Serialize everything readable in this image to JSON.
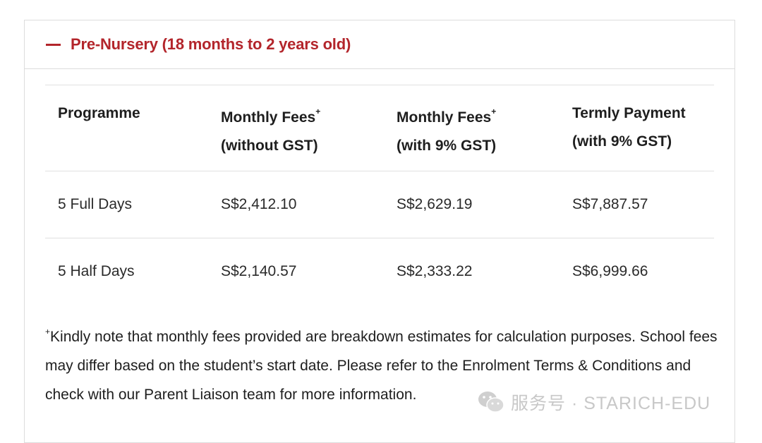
{
  "accordion": {
    "title": "Pre-Nursery (18 months to 2 years old)",
    "icon": "minus-icon",
    "accent_color": "#b3252b"
  },
  "table": {
    "headers": [
      {
        "line1": "Programme",
        "sup": "",
        "line2": ""
      },
      {
        "line1": "Monthly Fees",
        "sup": "+",
        "line2": "(without GST)"
      },
      {
        "line1": "Monthly Fees",
        "sup": "+",
        "line2": "(with 9% GST)"
      },
      {
        "line1": "Termly Payment",
        "sup": "",
        "line2": "(with 9% GST)"
      }
    ],
    "rows": [
      [
        "5 Full Days",
        "S$2,412.10",
        "S$2,629.19",
        "S$7,887.57"
      ],
      [
        "5 Half Days",
        "S$2,140.57",
        "S$2,333.22",
        "S$6,999.66"
      ]
    ]
  },
  "footnote": {
    "marker": "+",
    "text": "Kindly note that monthly fees provided are breakdown estimates for calculation purposes. School fees may differ based on the student’s start date. Please refer to the Enrolment Terms & Conditions and check with our Parent Liaison team for more information."
  },
  "watermark": {
    "icon": "wechat-icon",
    "text": "服务号 · STARICH-EDU"
  }
}
